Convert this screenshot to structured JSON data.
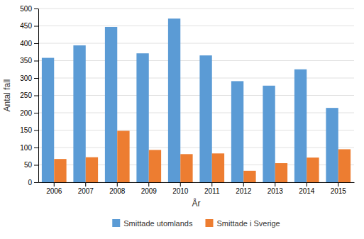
{
  "chart_data": {
    "type": "bar",
    "categories": [
      "2006",
      "2007",
      "2008",
      "2009",
      "2010",
      "2011",
      "2012",
      "2013",
      "2014",
      "2015"
    ],
    "series": [
      {
        "name": "Smittade utomlands",
        "color": "#5B9BD5",
        "values": [
          358,
          394,
          447,
          371,
          471,
          365,
          291,
          278,
          325,
          214
        ]
      },
      {
        "name": "Smittade i Sverige",
        "color": "#ED7D31",
        "values": [
          67,
          72,
          148,
          93,
          81,
          83,
          33,
          55,
          71,
          95
        ]
      }
    ],
    "xlabel": "År",
    "ylabel": "Antal fall",
    "ylim": [
      0,
      500
    ],
    "yticks": [
      0,
      50,
      100,
      150,
      200,
      250,
      300,
      350,
      400,
      450,
      500
    ],
    "grid": true,
    "legend": "bottom"
  }
}
